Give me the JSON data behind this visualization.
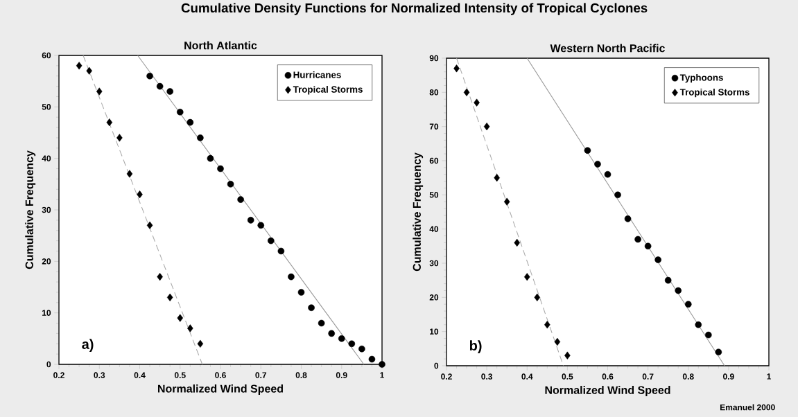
{
  "chart_data": [
    {
      "type": "scatter",
      "title": "North Atlantic",
      "xlabel": "Normalized Wind Speed",
      "ylabel": "Cumulative Frequency",
      "xlim": [
        0.2,
        1
      ],
      "ylim": [
        0,
        60
      ],
      "xticks": [
        0.2,
        0.3,
        0.4,
        0.5,
        0.6,
        0.7,
        0.8,
        0.9,
        1
      ],
      "yticks": [
        0,
        10,
        20,
        30,
        40,
        50,
        60
      ],
      "legend": "top right",
      "annotations": [
        "Cumulative Density Functions for Normalized Intensity of Tropical Cyclones",
        "a)"
      ],
      "series": [
        {
          "name": "Hurricanes",
          "color": "#000000",
          "marker": "circle",
          "x": [
            0.425,
            0.45,
            0.475,
            0.5,
            0.525,
            0.55,
            0.575,
            0.6,
            0.625,
            0.65,
            0.675,
            0.7,
            0.725,
            0.75,
            0.775,
            0.8,
            0.825,
            0.85,
            0.875,
            0.9,
            0.925,
            0.95,
            0.975,
            1.0
          ],
          "values": [
            56,
            54,
            53,
            49,
            47,
            44,
            40,
            38,
            35,
            32,
            28,
            27,
            24,
            22,
            17,
            14,
            11,
            8,
            6,
            5,
            4,
            3,
            1,
            0
          ]
        },
        {
          "name": "Tropical Storms",
          "color": "#000000",
          "marker": "diamond",
          "x": [
            0.25,
            0.275,
            0.3,
            0.325,
            0.35,
            0.375,
            0.4,
            0.425,
            0.45,
            0.475,
            0.5,
            0.525,
            0.55
          ],
          "values": [
            58,
            57,
            53,
            47,
            44,
            37,
            33,
            27,
            17,
            13,
            9,
            7,
            4
          ]
        },
        {
          "type": "line",
          "color": "#999999",
          "marker": "none",
          "line_style": "solid",
          "x": [
            0.395,
            0.955
          ],
          "values": [
            60,
            0
          ]
        },
        {
          "type": "line",
          "color": "#aaaaaa",
          "marker": "none",
          "line_style": "dashed",
          "x": [
            0.26,
            0.555
          ],
          "values": [
            60,
            0
          ]
        }
      ]
    },
    {
      "type": "scatter",
      "title": "Western North Pacific",
      "xlabel": "Normalized Wind Speed",
      "ylabel": "Cumulative Frequency",
      "xlim": [
        0.2,
        1
      ],
      "ylim": [
        0,
        90
      ],
      "xticks": [
        0.2,
        0.3,
        0.4,
        0.5,
        0.6,
        0.7,
        0.8,
        0.9,
        1
      ],
      "yticks": [
        0,
        10,
        20,
        30,
        40,
        50,
        60,
        70,
        80,
        90
      ],
      "legend": "top right",
      "annotations": [
        "b)",
        "Emanuel 2000"
      ],
      "series": [
        {
          "name": "Typhoons",
          "color": "#000000",
          "marker": "circle",
          "x": [
            0.55,
            0.575,
            0.6,
            0.625,
            0.65,
            0.675,
            0.7,
            0.725,
            0.75,
            0.775,
            0.8,
            0.825,
            0.85,
            0.875
          ],
          "values": [
            63,
            59,
            56,
            50,
            43,
            37,
            35,
            31,
            25,
            22,
            18,
            12,
            9,
            4
          ]
        },
        {
          "name": "Tropical Storms",
          "color": "#000000",
          "marker": "diamond",
          "x": [
            0.225,
            0.25,
            0.275,
            0.3,
            0.325,
            0.35,
            0.375,
            0.4,
            0.425,
            0.45,
            0.475,
            0.5
          ],
          "values": [
            87,
            80,
            77,
            70,
            55,
            48,
            36,
            26,
            20,
            12,
            7,
            3
          ]
        },
        {
          "type": "line",
          "color": "#999999",
          "marker": "none",
          "line_style": "solid",
          "x": [
            0.4,
            0.89
          ],
          "values": [
            90,
            0
          ]
        },
        {
          "type": "line",
          "color": "#aaaaaa",
          "marker": "none",
          "line_style": "dashed",
          "x": [
            0.225,
            0.49
          ],
          "values": [
            90,
            0
          ]
        }
      ]
    }
  ]
}
